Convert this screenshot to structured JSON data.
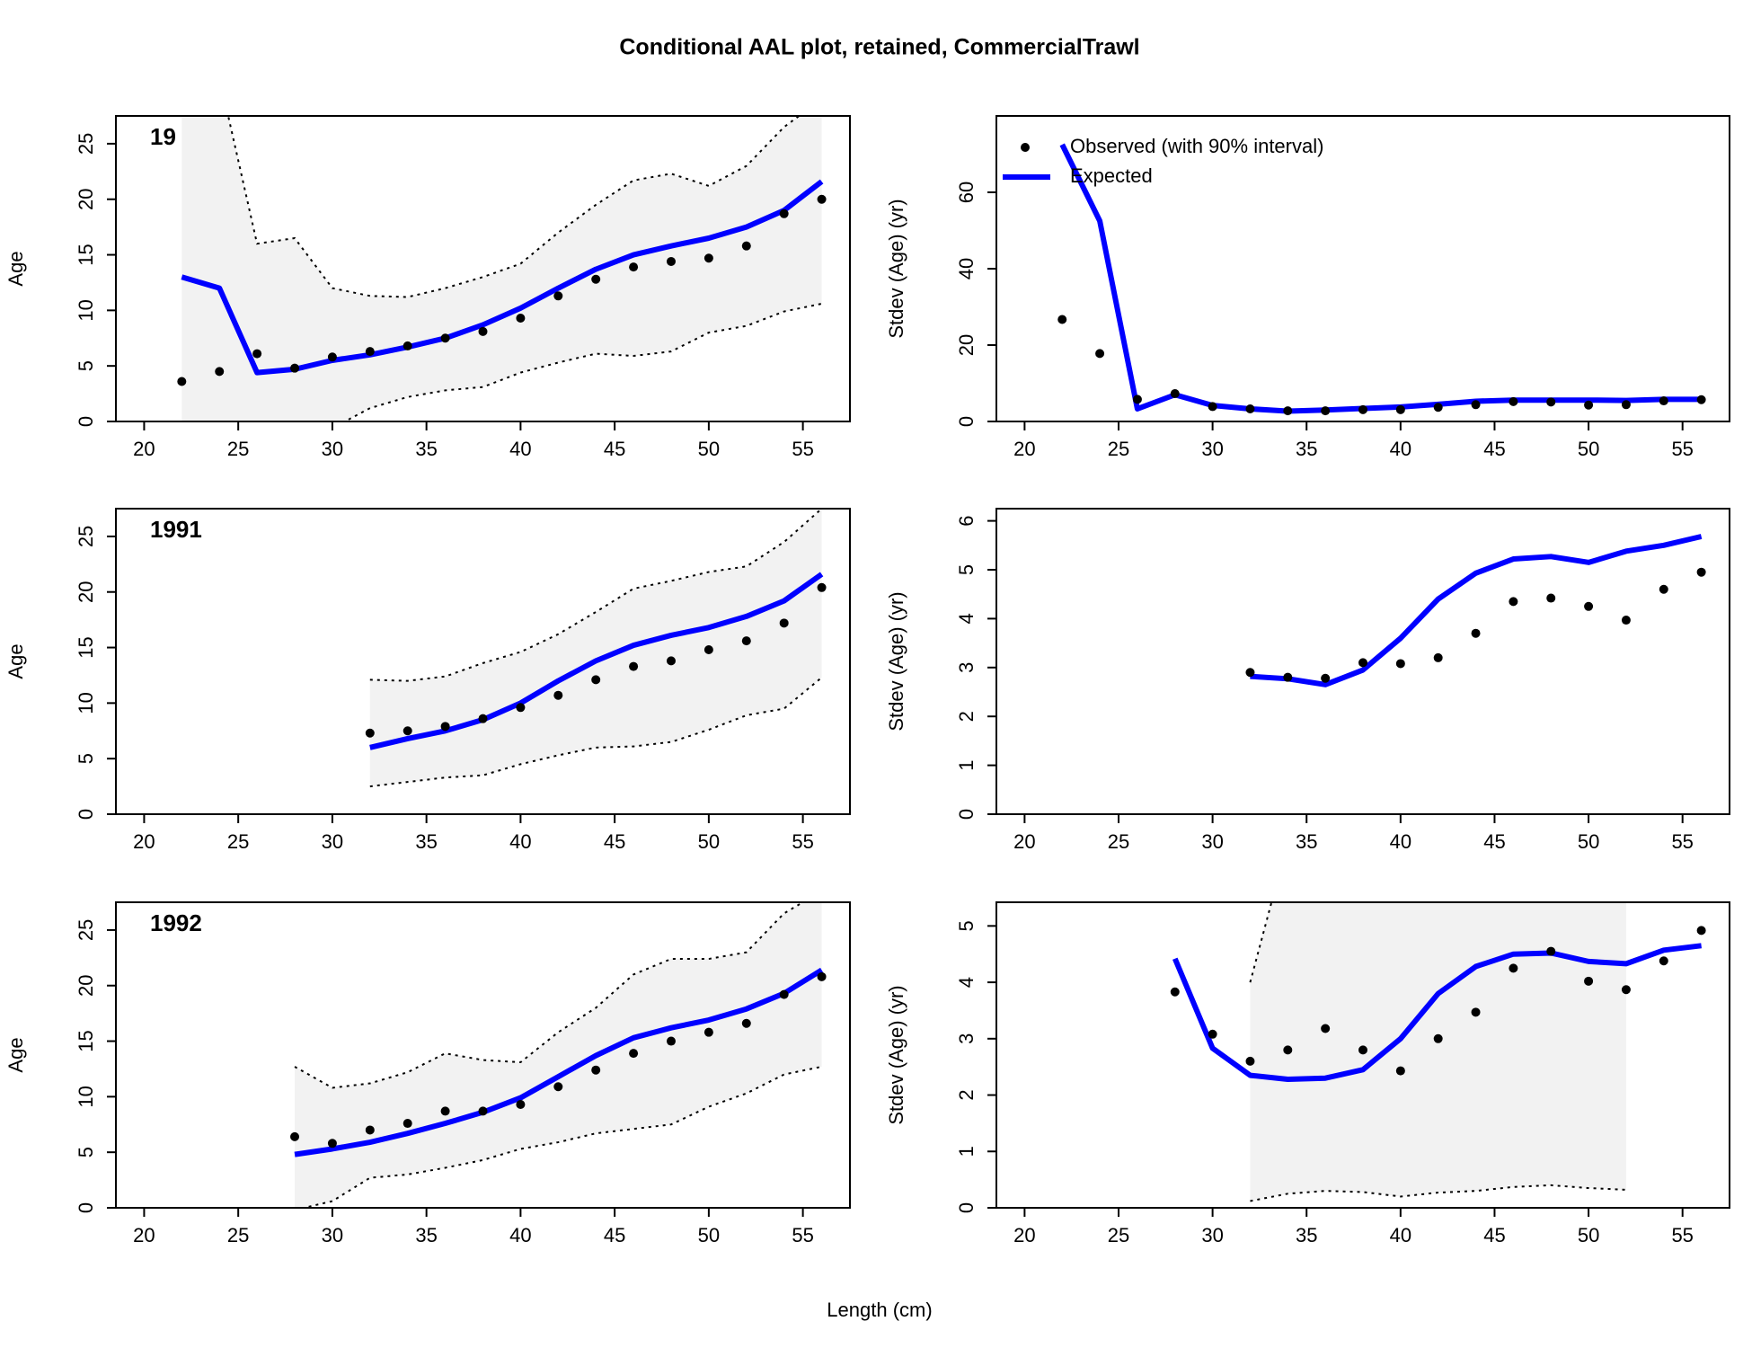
{
  "title": "Conditional AAL plot, retained, CommercialTrawl",
  "xlabel": "Length (cm)",
  "chart_data": [
    {
      "type": "aal",
      "label": "19",
      "ylabel": "Age",
      "x": [
        22,
        24,
        26,
        28,
        30,
        32,
        34,
        36,
        38,
        40,
        42,
        44,
        46,
        48,
        50,
        52,
        54,
        56
      ],
      "series": [
        {
          "color": "#000000",
          "values": [
            3.6,
            4.5,
            6.1,
            4.8,
            5.8,
            6.3,
            6.8,
            7.5,
            8.1,
            9.3,
            11.3,
            12.8,
            13.9,
            14.4,
            14.7,
            15.8,
            18.7,
            20.0
          ]
        },
        {
          "color": "#0000ff",
          "values": [
            13.0,
            12.0,
            4.4,
            4.7,
            5.5,
            6.0,
            6.7,
            7.5,
            8.7,
            10.2,
            12.0,
            13.7,
            15.0,
            15.8,
            16.5,
            17.5,
            19.0,
            21.6
          ]
        }
      ],
      "interval": {
        "upper": [
          45,
          31,
          16,
          16.5,
          12,
          11.3,
          11.2,
          12,
          13,
          14.2,
          17,
          19.5,
          21.7,
          22.3,
          21.2,
          23,
          26.5,
          29
        ],
        "lower": [
          -5,
          -5,
          -3,
          -2,
          -0.6,
          1.2,
          2.2,
          2.8,
          3.1,
          4.4,
          5.3,
          6.1,
          5.9,
          6.3,
          8.0,
          8.6,
          9.9,
          10.6
        ]
      },
      "xlim": [
        18.5,
        57.5
      ],
      "ylim": [
        0,
        27.5
      ],
      "xticks": [
        20,
        25,
        30,
        35,
        40,
        45,
        50,
        55
      ],
      "yticks": [
        0,
        5,
        10,
        15,
        20,
        25
      ]
    },
    {
      "type": "stdev",
      "ylabel": "Stdev (Age) (yr)",
      "x": [
        22,
        24,
        26,
        28,
        30,
        32,
        34,
        36,
        38,
        40,
        42,
        44,
        46,
        48,
        50,
        52,
        54,
        56
      ],
      "series": [
        {
          "name": "Observed (with 90% interval)",
          "color": "#000000",
          "values": [
            26.7,
            17.8,
            5.8,
            7.3,
            3.9,
            3.3,
            2.8,
            2.8,
            3.1,
            3.1,
            3.7,
            4.4,
            5.2,
            5.1,
            4.3,
            4.4,
            5.4,
            5.7
          ]
        },
        {
          "name": "Expected",
          "color": "#0000ff",
          "values": [
            72.5,
            52.5,
            3.3,
            7.0,
            4.2,
            3.3,
            2.7,
            3.0,
            3.4,
            3.8,
            4.5,
            5.3,
            5.6,
            5.6,
            5.6,
            5.5,
            5.8,
            5.8
          ]
        }
      ],
      "xlim": [
        18.5,
        57.5
      ],
      "ylim": [
        0,
        80
      ],
      "xticks": [
        20,
        25,
        30,
        35,
        40,
        45,
        50,
        55
      ],
      "yticks": [
        0,
        20,
        40,
        60
      ]
    },
    {
      "type": "aal",
      "label": "1991",
      "ylabel": "Age",
      "x": [
        32,
        34,
        36,
        38,
        40,
        42,
        44,
        46,
        48,
        50,
        52,
        54,
        56
      ],
      "series": [
        {
          "color": "#000000",
          "values": [
            7.3,
            7.5,
            7.9,
            8.6,
            9.6,
            10.7,
            12.1,
            13.3,
            13.8,
            14.8,
            15.6,
            17.2,
            20.4
          ]
        },
        {
          "color": "#0000ff",
          "values": [
            6.0,
            6.8,
            7.5,
            8.5,
            10.0,
            12.0,
            13.8,
            15.2,
            16.1,
            16.8,
            17.8,
            19.2,
            21.6
          ]
        }
      ],
      "interval": {
        "upper": [
          12.1,
          12.0,
          12.4,
          13.6,
          14.6,
          16.2,
          18.2,
          20.3,
          21.0,
          21.8,
          22.3,
          24.5,
          27.5
        ],
        "lower": [
          2.5,
          2.9,
          3.3,
          3.5,
          4.5,
          5.3,
          6.0,
          6.1,
          6.5,
          7.6,
          8.9,
          9.5,
          12.3
        ]
      },
      "xlim": [
        18.5,
        57.5
      ],
      "ylim": [
        0,
        27.5
      ],
      "xticks": [
        20,
        25,
        30,
        35,
        40,
        45,
        50,
        55
      ],
      "yticks": [
        0,
        5,
        10,
        15,
        20,
        25
      ]
    },
    {
      "type": "stdev",
      "ylabel": "Stdev (Age) (yr)",
      "x": [
        32,
        34,
        36,
        38,
        40,
        42,
        44,
        46,
        48,
        50,
        52,
        54,
        56
      ],
      "series": [
        {
          "color": "#000000",
          "values": [
            2.9,
            2.8,
            2.78,
            3.1,
            3.08,
            3.2,
            3.7,
            4.35,
            4.42,
            4.25,
            3.97,
            4.6,
            4.95
          ]
        },
        {
          "color": "#0000ff",
          "values": [
            2.82,
            2.77,
            2.65,
            2.95,
            3.6,
            4.4,
            4.93,
            5.22,
            5.27,
            5.15,
            5.38,
            5.5,
            5.68
          ]
        }
      ],
      "xlim": [
        18.5,
        57.5
      ],
      "ylim": [
        0,
        6.25
      ],
      "xticks": [
        20,
        25,
        30,
        35,
        40,
        45,
        50,
        55
      ],
      "yticks": [
        0,
        1,
        2,
        3,
        4,
        5,
        6
      ]
    },
    {
      "type": "aal",
      "label": "1992",
      "ylabel": "Age",
      "x": [
        28,
        30,
        32,
        34,
        36,
        38,
        40,
        42,
        44,
        46,
        48,
        50,
        52,
        54,
        56
      ],
      "series": [
        {
          "color": "#000000",
          "values": [
            6.4,
            5.8,
            7.0,
            7.6,
            8.7,
            8.7,
            9.3,
            10.9,
            12.4,
            13.9,
            15.0,
            15.8,
            16.6,
            19.2,
            20.8
          ]
        },
        {
          "color": "#0000ff",
          "values": [
            4.8,
            5.3,
            5.9,
            6.7,
            7.6,
            8.6,
            9.9,
            11.8,
            13.7,
            15.3,
            16.2,
            16.9,
            17.9,
            19.3,
            21.4
          ]
        }
      ],
      "interval": {
        "upper": [
          12.7,
          10.8,
          11.2,
          12.2,
          13.9,
          13.3,
          13.1,
          15.8,
          18.0,
          21.0,
          22.4,
          22.4,
          23.0,
          26.5,
          28.5
        ],
        "lower": [
          -0.2,
          0.6,
          2.7,
          3.0,
          3.6,
          4.3,
          5.3,
          5.9,
          6.7,
          7.1,
          7.5,
          9.1,
          10.3,
          12.0,
          12.7
        ]
      },
      "xlim": [
        18.5,
        57.5
      ],
      "ylim": [
        0,
        27.5
      ],
      "xticks": [
        20,
        25,
        30,
        35,
        40,
        45,
        50,
        55
      ],
      "yticks": [
        0,
        5,
        10,
        15,
        20,
        25
      ]
    },
    {
      "type": "stdev",
      "ylabel": "Stdev (Age) (yr)",
      "x": [
        28,
        30,
        32,
        34,
        36,
        38,
        40,
        42,
        44,
        46,
        48,
        50,
        52,
        54,
        56
      ],
      "series": [
        {
          "color": "#000000",
          "values": [
            3.83,
            3.08,
            2.6,
            2.8,
            3.18,
            2.8,
            2.43,
            3.0,
            3.47,
            4.25,
            4.55,
            4.02,
            3.87,
            4.38,
            4.92
          ]
        },
        {
          "color": "#0000ff",
          "values": [
            4.42,
            2.83,
            2.35,
            2.28,
            2.3,
            2.45,
            3.0,
            3.8,
            4.28,
            4.5,
            4.52,
            4.37,
            4.33,
            4.57,
            4.65
          ]
        }
      ],
      "interval": {
        "upper": [
          null,
          null,
          4.0,
          6.5,
          7.5,
          7.5,
          7.5,
          7.5,
          7.5,
          7.5,
          7.5,
          7.5,
          7.5,
          null,
          null
        ],
        "lower": [
          null,
          null,
          0.12,
          0.25,
          0.3,
          0.28,
          0.2,
          0.27,
          0.3,
          0.37,
          0.4,
          0.35,
          0.32,
          null,
          null
        ]
      },
      "xlim": [
        18.5,
        57.5
      ],
      "ylim": [
        0,
        5.42
      ],
      "xticks": [
        20,
        25,
        30,
        35,
        40,
        45,
        50,
        55
      ],
      "yticks": [
        0,
        1,
        2,
        3,
        4,
        5
      ]
    }
  ]
}
